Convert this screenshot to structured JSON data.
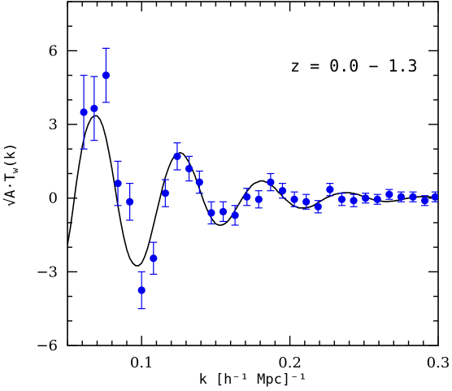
{
  "chart_data": {
    "type": "scatter",
    "title": "",
    "annotation": "z = 0.0 − 1.3",
    "xlabel": "k [h⁻¹ Mpc]⁻¹",
    "ylabel_main": "√A·T",
    "ylabel_sub": "w",
    "ylabel_tail": "(k)",
    "xlim": [
      0.05,
      0.3
    ],
    "ylim": [
      -6,
      8
    ],
    "xticks": [
      0.1,
      0.2,
      0.3
    ],
    "xtick_labels": [
      "0.1",
      "0.2",
      "0.3"
    ],
    "yticks": [
      -6,
      -3,
      0,
      3,
      6
    ],
    "ytick_labels": [
      "−6",
      "−3",
      "0",
      "3",
      "6"
    ],
    "grid": false,
    "colors": {
      "points": "#0000ee",
      "model": "#000000",
      "axes": "#000000"
    },
    "series": [
      {
        "kind": "points-with-errorbars",
        "points": [
          {
            "x": 0.061,
            "y": 3.5,
            "err": 1.5
          },
          {
            "x": 0.068,
            "y": 3.65,
            "err": 1.3
          },
          {
            "x": 0.076,
            "y": 5.0,
            "err": 1.1
          },
          {
            "x": 0.084,
            "y": 0.6,
            "err": 0.9
          },
          {
            "x": 0.092,
            "y": -0.15,
            "err": 0.75
          },
          {
            "x": 0.1,
            "y": -3.75,
            "err": 0.75
          },
          {
            "x": 0.108,
            "y": -2.45,
            "err": 0.65
          },
          {
            "x": 0.116,
            "y": 0.2,
            "err": 0.55
          },
          {
            "x": 0.124,
            "y": 1.7,
            "err": 0.55
          },
          {
            "x": 0.132,
            "y": 1.2,
            "err": 0.5
          },
          {
            "x": 0.139,
            "y": 0.65,
            "err": 0.45
          },
          {
            "x": 0.147,
            "y": -0.6,
            "err": 0.45
          },
          {
            "x": 0.155,
            "y": -0.55,
            "err": 0.4
          },
          {
            "x": 0.163,
            "y": -0.7,
            "err": 0.4
          },
          {
            "x": 0.171,
            "y": 0.05,
            "err": 0.35
          },
          {
            "x": 0.179,
            "y": -0.05,
            "err": 0.35
          },
          {
            "x": 0.187,
            "y": 0.65,
            "err": 0.35
          },
          {
            "x": 0.195,
            "y": 0.3,
            "err": 0.3
          },
          {
            "x": 0.203,
            "y": -0.05,
            "err": 0.3
          },
          {
            "x": 0.211,
            "y": -0.15,
            "err": 0.3
          },
          {
            "x": 0.219,
            "y": -0.35,
            "err": 0.25
          },
          {
            "x": 0.227,
            "y": 0.35,
            "err": 0.25
          },
          {
            "x": 0.235,
            "y": -0.05,
            "err": 0.25
          },
          {
            "x": 0.243,
            "y": -0.1,
            "err": 0.25
          },
          {
            "x": 0.251,
            "y": 0.0,
            "err": 0.2
          },
          {
            "x": 0.259,
            "y": -0.05,
            "err": 0.2
          },
          {
            "x": 0.267,
            "y": 0.15,
            "err": 0.2
          },
          {
            "x": 0.275,
            "y": 0.05,
            "err": 0.2
          },
          {
            "x": 0.283,
            "y": 0.05,
            "err": 0.2
          },
          {
            "x": 0.291,
            "y": -0.1,
            "err": 0.2
          },
          {
            "x": 0.298,
            "y": 0.05,
            "err": 0.2
          }
        ]
      },
      {
        "kind": "model-curve",
        "points": [
          [
            0.05,
            -1.9
          ],
          [
            0.052,
            -1.2
          ],
          [
            0.054,
            -0.3
          ],
          [
            0.056,
            0.6
          ],
          [
            0.058,
            1.4
          ],
          [
            0.06,
            2.1
          ],
          [
            0.062,
            2.65
          ],
          [
            0.064,
            3.0
          ],
          [
            0.066,
            3.25
          ],
          [
            0.068,
            3.35
          ],
          [
            0.07,
            3.35
          ],
          [
            0.072,
            3.2
          ],
          [
            0.074,
            2.9
          ],
          [
            0.076,
            2.45
          ],
          [
            0.078,
            1.85
          ],
          [
            0.08,
            1.2
          ],
          [
            0.082,
            0.45
          ],
          [
            0.084,
            -0.3
          ],
          [
            0.086,
            -1.0
          ],
          [
            0.088,
            -1.6
          ],
          [
            0.09,
            -2.1
          ],
          [
            0.092,
            -2.45
          ],
          [
            0.094,
            -2.65
          ],
          [
            0.096,
            -2.75
          ],
          [
            0.098,
            -2.75
          ],
          [
            0.1,
            -2.65
          ],
          [
            0.102,
            -2.4
          ],
          [
            0.104,
            -2.05
          ],
          [
            0.106,
            -1.6
          ],
          [
            0.108,
            -1.1
          ],
          [
            0.11,
            -0.6
          ],
          [
            0.112,
            -0.1
          ],
          [
            0.114,
            0.4
          ],
          [
            0.116,
            0.85
          ],
          [
            0.118,
            1.2
          ],
          [
            0.12,
            1.5
          ],
          [
            0.122,
            1.7
          ],
          [
            0.124,
            1.8
          ],
          [
            0.126,
            1.85
          ],
          [
            0.128,
            1.8
          ],
          [
            0.13,
            1.65
          ],
          [
            0.132,
            1.45
          ],
          [
            0.134,
            1.2
          ],
          [
            0.136,
            0.9
          ],
          [
            0.138,
            0.55
          ],
          [
            0.14,
            0.2
          ],
          [
            0.142,
            -0.15
          ],
          [
            0.144,
            -0.45
          ],
          [
            0.146,
            -0.7
          ],
          [
            0.148,
            -0.9
          ],
          [
            0.15,
            -1.05
          ],
          [
            0.152,
            -1.1
          ],
          [
            0.154,
            -1.1
          ],
          [
            0.156,
            -1.05
          ],
          [
            0.158,
            -0.95
          ],
          [
            0.16,
            -0.8
          ],
          [
            0.162,
            -0.6
          ],
          [
            0.164,
            -0.4
          ],
          [
            0.166,
            -0.2
          ],
          [
            0.168,
            0.0
          ],
          [
            0.17,
            0.2
          ],
          [
            0.172,
            0.35
          ],
          [
            0.174,
            0.5
          ],
          [
            0.176,
            0.6
          ],
          [
            0.178,
            0.65
          ],
          [
            0.18,
            0.7
          ],
          [
            0.182,
            0.7
          ],
          [
            0.184,
            0.65
          ],
          [
            0.186,
            0.6
          ],
          [
            0.188,
            0.5
          ],
          [
            0.19,
            0.4
          ],
          [
            0.192,
            0.25
          ],
          [
            0.194,
            0.15
          ],
          [
            0.196,
            0.0
          ],
          [
            0.198,
            -0.1
          ],
          [
            0.2,
            -0.2
          ],
          [
            0.202,
            -0.3
          ],
          [
            0.204,
            -0.35
          ],
          [
            0.206,
            -0.4
          ],
          [
            0.208,
            -0.4
          ],
          [
            0.21,
            -0.4
          ],
          [
            0.212,
            -0.38
          ],
          [
            0.214,
            -0.35
          ],
          [
            0.216,
            -0.3
          ],
          [
            0.218,
            -0.22
          ],
          [
            0.22,
            -0.15
          ],
          [
            0.222,
            -0.08
          ],
          [
            0.224,
            0.0
          ],
          [
            0.226,
            0.05
          ],
          [
            0.228,
            0.1
          ],
          [
            0.23,
            0.15
          ],
          [
            0.232,
            0.18
          ],
          [
            0.234,
            0.2
          ],
          [
            0.236,
            0.22
          ],
          [
            0.238,
            0.22
          ],
          [
            0.24,
            0.22
          ],
          [
            0.242,
            0.2
          ],
          [
            0.244,
            0.18
          ],
          [
            0.246,
            0.15
          ],
          [
            0.248,
            0.1
          ],
          [
            0.25,
            0.06
          ],
          [
            0.252,
            0.02
          ],
          [
            0.254,
            -0.02
          ],
          [
            0.256,
            -0.06
          ],
          [
            0.258,
            -0.09
          ],
          [
            0.26,
            -0.11
          ],
          [
            0.262,
            -0.13
          ],
          [
            0.264,
            -0.14
          ],
          [
            0.266,
            -0.14
          ],
          [
            0.268,
            -0.13
          ],
          [
            0.27,
            -0.12
          ],
          [
            0.272,
            -0.1
          ],
          [
            0.274,
            -0.08
          ],
          [
            0.276,
            -0.05
          ],
          [
            0.278,
            -0.02
          ],
          [
            0.28,
            0.0
          ],
          [
            0.282,
            0.02
          ],
          [
            0.284,
            0.04
          ],
          [
            0.286,
            0.05
          ],
          [
            0.288,
            0.06
          ],
          [
            0.29,
            0.06
          ],
          [
            0.292,
            0.06
          ],
          [
            0.294,
            0.05
          ],
          [
            0.296,
            0.04
          ],
          [
            0.298,
            0.03
          ],
          [
            0.3,
            0.02
          ]
        ]
      }
    ]
  }
}
